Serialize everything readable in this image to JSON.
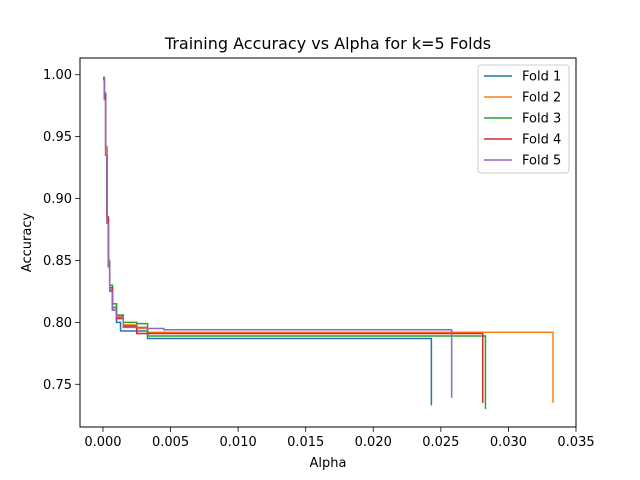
{
  "chart_data": {
    "type": "line",
    "title": "Training Accuracy vs Alpha for k=5 Folds",
    "xlabel": "Alpha",
    "ylabel": "Accuracy",
    "xlim": [
      -0.0017,
      0.035
    ],
    "ylim": [
      0.7155,
      1.0135
    ],
    "xticks": [
      0.0,
      0.005,
      0.01,
      0.015,
      0.02,
      0.025,
      0.03,
      0.035
    ],
    "xtick_labels": [
      "0.000",
      "0.005",
      "0.010",
      "0.015",
      "0.020",
      "0.025",
      "0.030",
      "0.035"
    ],
    "yticks": [
      0.75,
      0.8,
      0.85,
      0.9,
      0.95,
      1.0
    ],
    "ytick_labels": [
      "0.75",
      "0.80",
      "0.85",
      "0.90",
      "0.95",
      "1.00"
    ],
    "grid": false,
    "legend_position": "top-right",
    "drawstyle": "steps-post",
    "series": [
      {
        "name": "Fold 1",
        "color": "#1f77b4",
        "x": [
          0.0,
          0.0001,
          0.0002,
          0.0003,
          0.0004,
          0.0005,
          0.0007,
          0.001,
          0.0013,
          0.002,
          0.0033,
          0.0243,
          0.0243
        ],
        "y": [
          0.997,
          0.985,
          0.94,
          0.885,
          0.845,
          0.826,
          0.812,
          0.8,
          0.793,
          0.793,
          0.787,
          0.787,
          0.733
        ]
      },
      {
        "name": "Fold 2",
        "color": "#ff7f0e",
        "x": [
          0.0,
          0.0001,
          0.0002,
          0.0003,
          0.0004,
          0.0005,
          0.0007,
          0.001,
          0.0015,
          0.0025,
          0.0033,
          0.0333,
          0.0333
        ],
        "y": [
          0.996,
          0.98,
          0.942,
          0.885,
          0.85,
          0.83,
          0.815,
          0.805,
          0.798,
          0.795,
          0.792,
          0.792,
          0.735
        ]
      },
      {
        "name": "Fold 3",
        "color": "#2ca02c",
        "x": [
          0.0,
          0.0001,
          0.0002,
          0.0003,
          0.0004,
          0.0005,
          0.0007,
          0.001,
          0.0015,
          0.0025,
          0.0033,
          0.0283,
          0.0283
        ],
        "y": [
          0.996,
          0.982,
          0.935,
          0.88,
          0.848,
          0.83,
          0.815,
          0.806,
          0.8,
          0.799,
          0.789,
          0.789,
          0.73
        ]
      },
      {
        "name": "Fold 4",
        "color": "#d62728",
        "x": [
          0.0,
          0.0001,
          0.0002,
          0.0003,
          0.0004,
          0.0005,
          0.0007,
          0.001,
          0.0015,
          0.0025,
          0.0045,
          0.0281,
          0.0281
        ],
        "y": [
          0.997,
          0.983,
          0.935,
          0.885,
          0.845,
          0.828,
          0.81,
          0.803,
          0.797,
          0.791,
          0.791,
          0.791,
          0.735
        ]
      },
      {
        "name": "Fold 5",
        "color": "#9467bd",
        "x": [
          0.0,
          0.0001,
          0.0002,
          0.0003,
          0.0004,
          0.0005,
          0.0007,
          0.001,
          0.0015,
          0.0033,
          0.0045,
          0.0258,
          0.0258
        ],
        "y": [
          0.998,
          0.98,
          0.935,
          0.88,
          0.845,
          0.825,
          0.81,
          0.804,
          0.796,
          0.795,
          0.794,
          0.794,
          0.739
        ]
      }
    ]
  }
}
